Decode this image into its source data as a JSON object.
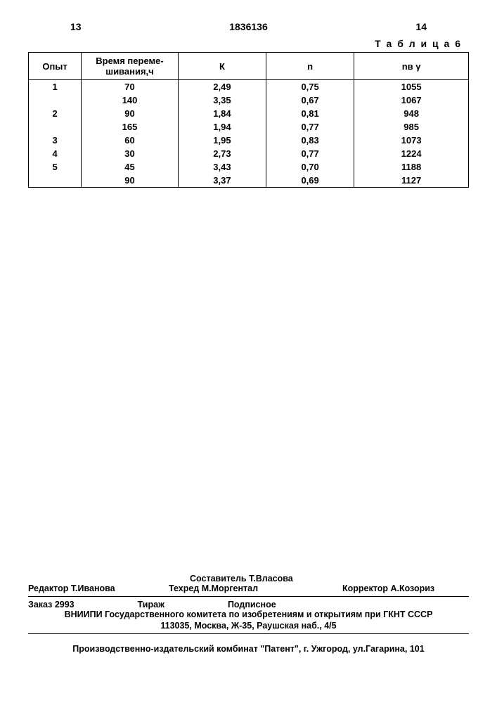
{
  "header": {
    "pageLeft": "13",
    "docNumber": "1836136",
    "pageRight": "14"
  },
  "table": {
    "caption": "Т а б л и ц а 6",
    "columns": [
      "Опыт",
      "Время переме-\nшивания,ч",
      "К",
      "n",
      "nв γ"
    ],
    "rows": [
      [
        "1",
        "70",
        "2,49",
        "0,75",
        "1055"
      ],
      [
        "",
        "140",
        "3,35",
        "0,67",
        "1067"
      ],
      [
        "2",
        "90",
        "1,84",
        "0,81",
        "948"
      ],
      [
        "",
        "165",
        "1,94",
        "0,77",
        "985"
      ],
      [
        "3",
        "60",
        "1,95",
        "0,83",
        "1073"
      ],
      [
        "4",
        "30",
        "2,73",
        "0,77",
        "1224"
      ],
      [
        "5",
        "45",
        "3,43",
        "0,70",
        "1188"
      ],
      [
        "",
        "90",
        "3,37",
        "0,69",
        "1127"
      ]
    ]
  },
  "footer": {
    "composer": "Составитель Т.Власова",
    "editor": "Редактор Т.Иванова",
    "techred": "Техред М.Моргентал",
    "corrector": "Корректор  А.Козориз",
    "order": "Заказ 2993",
    "tirage": "Тираж",
    "subscription": "Подписное",
    "org": "ВНИИПИ Государственного комитета по изобретениям и открытиям при ГКНТ СССР",
    "address": "113035, Москва, Ж-35, Раушская наб., 4/5",
    "production": "Производственно-издательский комбинат \"Патент\", г. Ужгород, ул.Гагарина, 101"
  }
}
